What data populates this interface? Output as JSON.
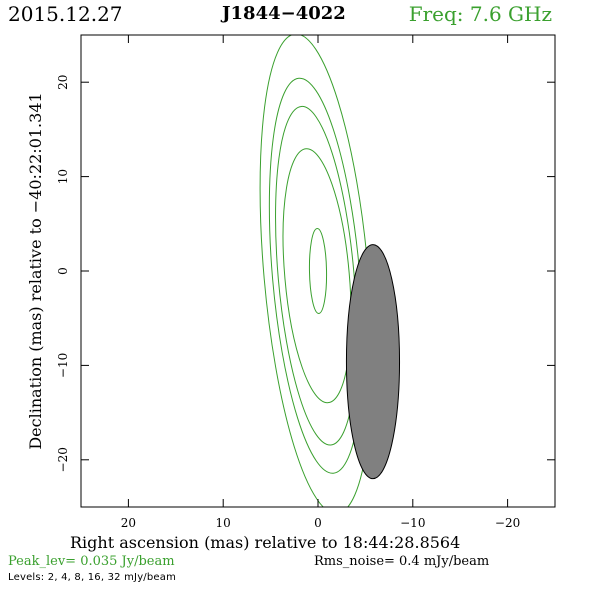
{
  "header": {
    "date": "2015.12.27",
    "source": "J1844−4022",
    "frequency": "Freq: 7.6 GHz"
  },
  "footer": {
    "peak_level": "Peak_lev=  0.035 Jy/beam",
    "rms_noise": "Rms_noise=   0.4 mJy/beam",
    "levels": "Levels:   2,    4,    8,   16,   32 mJy/beam"
  },
  "chart_data": {
    "type": "contour",
    "xlabel": "Right ascension (mas) relative to 18:44:28.8564",
    "ylabel": "Declination (mas) relative to −40:22:01.341",
    "xlim": [
      25,
      -25
    ],
    "ylim": [
      -25,
      25
    ],
    "x_ticks": [
      20,
      10,
      0,
      -10,
      -20
    ],
    "x_tick_labels": [
      "20",
      "10",
      "0",
      "−10",
      "−20"
    ],
    "y_ticks": [
      20,
      10,
      0,
      -10,
      -20
    ],
    "y_tick_labels": [
      "20",
      "10",
      "0",
      "−10",
      "−20"
    ],
    "contour_color": "#3aa02e",
    "contour_levels_mJy": [
      2,
      4,
      8,
      16,
      32
    ],
    "contours": [
      {
        "level": 2,
        "cx": 0.2,
        "cy": -0.3,
        "rx": 5.5,
        "ry": 25.5,
        "angle": -5
      },
      {
        "level": 4,
        "cx": 0.2,
        "cy": -0.5,
        "rx": 4.6,
        "ry": 21.0,
        "angle": -5
      },
      {
        "level": 8,
        "cx": 0.2,
        "cy": -0.5,
        "rx": 4.0,
        "ry": 18.0,
        "angle": -5
      },
      {
        "level": 16,
        "cx": 0.1,
        "cy": -0.5,
        "rx": 3.4,
        "ry": 13.5,
        "angle": -5
      },
      {
        "level": 32,
        "cx": 0.0,
        "cy": 0.0,
        "rx": 0.9,
        "ry": 4.5,
        "angle": -1
      }
    ],
    "beam": {
      "cx": -5.8,
      "cy": -9.6,
      "rx": 2.8,
      "ry": 12.4,
      "angle": 0,
      "color": "#808080"
    }
  }
}
